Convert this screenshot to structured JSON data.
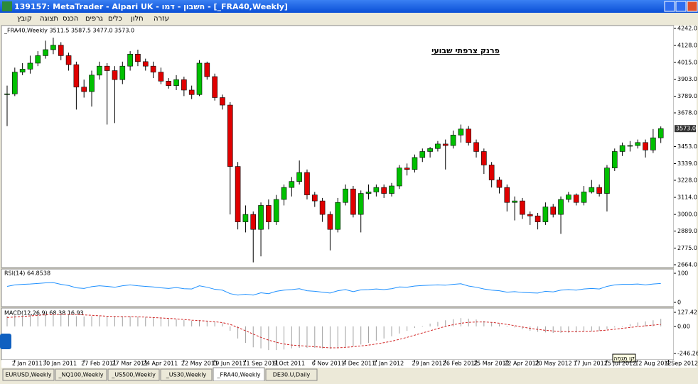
{
  "window": {
    "title": "139157: MetaTrader - Alpari UK - חשבון - דמו - [_FRA40,Weekly]",
    "menu": [
      "קובץ",
      "תצוגה",
      "הכנס",
      "גרפים",
      "כלים",
      "חלון",
      "עזרה"
    ],
    "tabs": [
      {
        "label": "EURUSD,Weekly",
        "active": false
      },
      {
        "label": "_NQ100,Weekly",
        "active": false
      },
      {
        "label": "_US500,Weekly",
        "active": false
      },
      {
        "label": "_US30,Weekly",
        "active": false
      },
      {
        "label": "_FRA40,Weekly",
        "active": true
      },
      {
        "label": "DE30.U,Daily",
        "active": false
      }
    ],
    "tooltip": "קו מגמה"
  },
  "chart_data": [
    {
      "type": "candlestick",
      "header": "_FRA40,Weekly  3511.5 3587.5 3477.0 3573.0",
      "annotation": "פרנק צרפתי שבועי",
      "up_color": "#00c000",
      "down_color": "#e00000",
      "categories": [
        null,
        "2 Jan 2011",
        null,
        null,
        null,
        "30 Jan 2011",
        null,
        null,
        null,
        null,
        "27 Feb 2011",
        null,
        null,
        null,
        "27 Mar 2011",
        null,
        null,
        null,
        "24 Apr 2011",
        null,
        null,
        null,
        null,
        "22 May 2011",
        null,
        null,
        null,
        "19 Jun 2011",
        null,
        null,
        null,
        "11 Sep 2011",
        null,
        null,
        null,
        "9 Oct 2011",
        null,
        null,
        null,
        null,
        "6 Nov 2011",
        null,
        null,
        null,
        "4 Dec 2011",
        null,
        null,
        null,
        "1 Jan 2012",
        null,
        null,
        null,
        null,
        "29 Jan 2012",
        null,
        null,
        null,
        "26 Feb 2012",
        null,
        null,
        null,
        "25 Mar 2012",
        null,
        null,
        null,
        "22 Apr 2012",
        null,
        null,
        null,
        "20 May 2012",
        null,
        null,
        null,
        null,
        "17 Jun 2012",
        null,
        null,
        null,
        "15 Jul 2012",
        null,
        null,
        null,
        "12 Aug 2012",
        null,
        null,
        null,
        "9 Sep 2012"
      ],
      "candles": [
        [
          3800,
          3860,
          3590,
          3805
        ],
        [
          3805,
          3980,
          3790,
          3950
        ],
        [
          3950,
          4010,
          3930,
          3970
        ],
        [
          3970,
          4060,
          3940,
          4010
        ],
        [
          4010,
          4090,
          3990,
          4060
        ],
        [
          4060,
          4160,
          4040,
          4100
        ],
        [
          4100,
          4180,
          4070,
          4130
        ],
        [
          4130,
          4150,
          4030,
          4060
        ],
        [
          4060,
          4080,
          3960,
          4000
        ],
        [
          4000,
          4020,
          3700,
          3850
        ],
        [
          3850,
          3900,
          3780,
          3820
        ],
        [
          3820,
          3960,
          3720,
          3930
        ],
        [
          3930,
          4020,
          3900,
          3990
        ],
        [
          3990,
          4010,
          3600,
          3960
        ],
        [
          3960,
          3990,
          3610,
          3900
        ],
        [
          3900,
          4020,
          3870,
          3990
        ],
        [
          3990,
          4090,
          3960,
          4070
        ],
        [
          4070,
          4100,
          3990,
          4020
        ],
        [
          4020,
          4040,
          3960,
          3990
        ],
        [
          3990,
          4020,
          3910,
          3950
        ],
        [
          3950,
          3980,
          3870,
          3890
        ],
        [
          3890,
          3910,
          3840,
          3860
        ],
        [
          3860,
          3930,
          3830,
          3900
        ],
        [
          3900,
          3920,
          3790,
          3830
        ],
        [
          3830,
          3860,
          3770,
          3800
        ],
        [
          3800,
          4030,
          3790,
          4010
        ],
        [
          4010,
          4020,
          3900,
          3920
        ],
        [
          3920,
          3940,
          3760,
          3780
        ],
        [
          3780,
          3800,
          3700,
          3730
        ],
        [
          3730,
          3750,
          3000,
          3320
        ],
        [
          3320,
          3350,
          2900,
          2950
        ],
        [
          2950,
          3060,
          2880,
          3000
        ],
        [
          3000,
          3020,
          2680,
          2900
        ],
        [
          2900,
          3080,
          2720,
          3060
        ],
        [
          3060,
          3100,
          2900,
          2950
        ],
        [
          2950,
          3130,
          2930,
          3100
        ],
        [
          3100,
          3200,
          3060,
          3180
        ],
        [
          3180,
          3250,
          3120,
          3220
        ],
        [
          3220,
          3360,
          3200,
          3280
        ],
        [
          3280,
          3300,
          3100,
          3130
        ],
        [
          3130,
          3150,
          3050,
          3090
        ],
        [
          3090,
          3110,
          2950,
          3000
        ],
        [
          3000,
          3020,
          2760,
          2900
        ],
        [
          2900,
          3110,
          2880,
          3080
        ],
        [
          3080,
          3200,
          3060,
          3170
        ],
        [
          3170,
          3190,
          2980,
          3000
        ],
        [
          3000,
          3160,
          2880,
          3140
        ],
        [
          3140,
          3200,
          3100,
          3150
        ],
        [
          3150,
          3200,
          3120,
          3180
        ],
        [
          3180,
          3200,
          3110,
          3140
        ],
        [
          3140,
          3210,
          3120,
          3190
        ],
        [
          3190,
          3330,
          3170,
          3310
        ],
        [
          3310,
          3340,
          3260,
          3300
        ],
        [
          3300,
          3400,
          3280,
          3380
        ],
        [
          3380,
          3440,
          3350,
          3420
        ],
        [
          3420,
          3450,
          3380,
          3440
        ],
        [
          3440,
          3490,
          3420,
          3470
        ],
        [
          3470,
          3500,
          3300,
          3460
        ],
        [
          3460,
          3560,
          3440,
          3530
        ],
        [
          3530,
          3600,
          3480,
          3570
        ],
        [
          3570,
          3590,
          3460,
          3480
        ],
        [
          3480,
          3500,
          3380,
          3420
        ],
        [
          3420,
          3440,
          3270,
          3330
        ],
        [
          3330,
          3350,
          3180,
          3230
        ],
        [
          3230,
          3250,
          3140,
          3180
        ],
        [
          3180,
          3200,
          3020,
          3080
        ],
        [
          3080,
          3120,
          2960,
          3090
        ],
        [
          3090,
          3110,
          2970,
          3000
        ],
        [
          3000,
          3020,
          2930,
          2990
        ],
        [
          2990,
          3010,
          2900,
          2950
        ],
        [
          2950,
          3080,
          2930,
          3050
        ],
        [
          3050,
          3070,
          2980,
          3000
        ],
        [
          3000,
          3120,
          2870,
          3100
        ],
        [
          3100,
          3150,
          3080,
          3130
        ],
        [
          3130,
          3140,
          3060,
          3080
        ],
        [
          3080,
          3190,
          3060,
          3150
        ],
        [
          3150,
          3230,
          3140,
          3180
        ],
        [
          3180,
          3200,
          3120,
          3140
        ],
        [
          3140,
          3330,
          3020,
          3310
        ],
        [
          3310,
          3440,
          3290,
          3420
        ],
        [
          3420,
          3480,
          3390,
          3460
        ],
        [
          3460,
          3490,
          3420,
          3460
        ],
        [
          3460,
          3500,
          3440,
          3480
        ],
        [
          3480,
          3500,
          3380,
          3430
        ],
        [
          3430,
          3570,
          3410,
          3511.5
        ],
        [
          3511.5,
          3587.5,
          3477,
          3573
        ]
      ],
      "ylim": [
        2664,
        4242
      ],
      "yticks": [
        {
          "value": 4242,
          "label": "4242.0"
        },
        {
          "value": 4128,
          "label": "4128.0"
        },
        {
          "value": 4015,
          "label": "4015.0"
        },
        {
          "value": 3903,
          "label": "3903.0"
        },
        {
          "value": 3789,
          "label": "3789.0"
        },
        {
          "value": 3678,
          "label": "3678.0"
        },
        {
          "value": 3453,
          "label": "3453.0"
        },
        {
          "value": 3339,
          "label": "3339.0"
        },
        {
          "value": 3228,
          "label": "3228.0"
        },
        {
          "value": 3114,
          "label": "3114.0"
        },
        {
          "value": 3000,
          "label": "3000.0"
        },
        {
          "value": 2889,
          "label": "2889.0"
        },
        {
          "value": 2775,
          "label": "2775.0"
        },
        {
          "value": 2664,
          "label": "2664.0"
        }
      ],
      "last_price": {
        "value": 3573,
        "label": "3573.0"
      }
    },
    {
      "type": "line",
      "header": "RSI(14) 64.8538",
      "color": "#1e90ff",
      "values": [
        55,
        60,
        62,
        63,
        65,
        67,
        68,
        62,
        58,
        50,
        48,
        54,
        57,
        55,
        52,
        57,
        60,
        57,
        55,
        53,
        50,
        48,
        51,
        47,
        46,
        57,
        52,
        45,
        42,
        30,
        25,
        28,
        25,
        33,
        30,
        38,
        42,
        44,
        47,
        40,
        38,
        35,
        32,
        40,
        44,
        37,
        43,
        44,
        46,
        44,
        47,
        53,
        52,
        56,
        58,
        59,
        60,
        59,
        62,
        64,
        56,
        52,
        46,
        42,
        40,
        35,
        37,
        34,
        33,
        32,
        38,
        36,
        42,
        44,
        42,
        46,
        48,
        46,
        55,
        60,
        62,
        62,
        63,
        60,
        63,
        64.8538
      ],
      "ylim": [
        0,
        100
      ],
      "yticks": [
        100,
        0
      ]
    },
    {
      "type": "macd",
      "header": "MACD(12,26,9) 68.38 16.93",
      "series": [
        {
          "color": "#a0a0a0",
          "values": [
            95,
            100,
            110,
            115,
            120,
            120,
            118,
            112,
            104,
            92,
            90,
            92,
            92,
            90,
            90,
            92,
            92,
            88,
            84,
            78,
            72,
            66,
            64,
            56,
            50,
            56,
            50,
            40,
            28,
            -40,
            -110,
            -150,
            -190,
            -200,
            -215,
            -215,
            -210,
            -200,
            -195,
            -195,
            -195,
            -200,
            -205,
            -195,
            -185,
            -180,
            -165,
            -150,
            -130,
            -110,
            -90,
            -65,
            -40,
            -15,
            5,
            25,
            40,
            55,
            65,
            75,
            70,
            62,
            50,
            36,
            20,
            5,
            -10,
            -25,
            -40,
            -50,
            -55,
            -60,
            -60,
            -58,
            -55,
            -50,
            -45,
            -40,
            -25,
            -10,
            5,
            20,
            35,
            45,
            55,
            68.38
          ]
        },
        {
          "color": "#d02020",
          "values": [
            80,
            85,
            90,
            95,
            100,
            105,
            108,
            110,
            110,
            108,
            104,
            100,
            96,
            92,
            90,
            88,
            88,
            86,
            84,
            80,
            76,
            72,
            68,
            62,
            56,
            52,
            48,
            42,
            34,
            18,
            -10,
            -40,
            -70,
            -100,
            -125,
            -145,
            -160,
            -170,
            -175,
            -180,
            -185,
            -190,
            -195,
            -195,
            -190,
            -185,
            -178,
            -170,
            -160,
            -148,
            -135,
            -118,
            -100,
            -80,
            -60,
            -40,
            -20,
            0,
            15,
            28,
            36,
            40,
            40,
            36,
            28,
            18,
            6,
            -6,
            -18,
            -28,
            -36,
            -42,
            -46,
            -48,
            -48,
            -46,
            -44,
            -40,
            -34,
            -26,
            -18,
            -10,
            -2,
            5,
            11,
            16.93
          ]
        }
      ],
      "ylim": [
        -246.26,
        127.42
      ],
      "yticks": [
        {
          "value": 127.42,
          "label": "127.42"
        },
        {
          "value": 0,
          "label": "0.00"
        },
        {
          "value": -246.26,
          "label": "-246.26"
        }
      ]
    }
  ]
}
